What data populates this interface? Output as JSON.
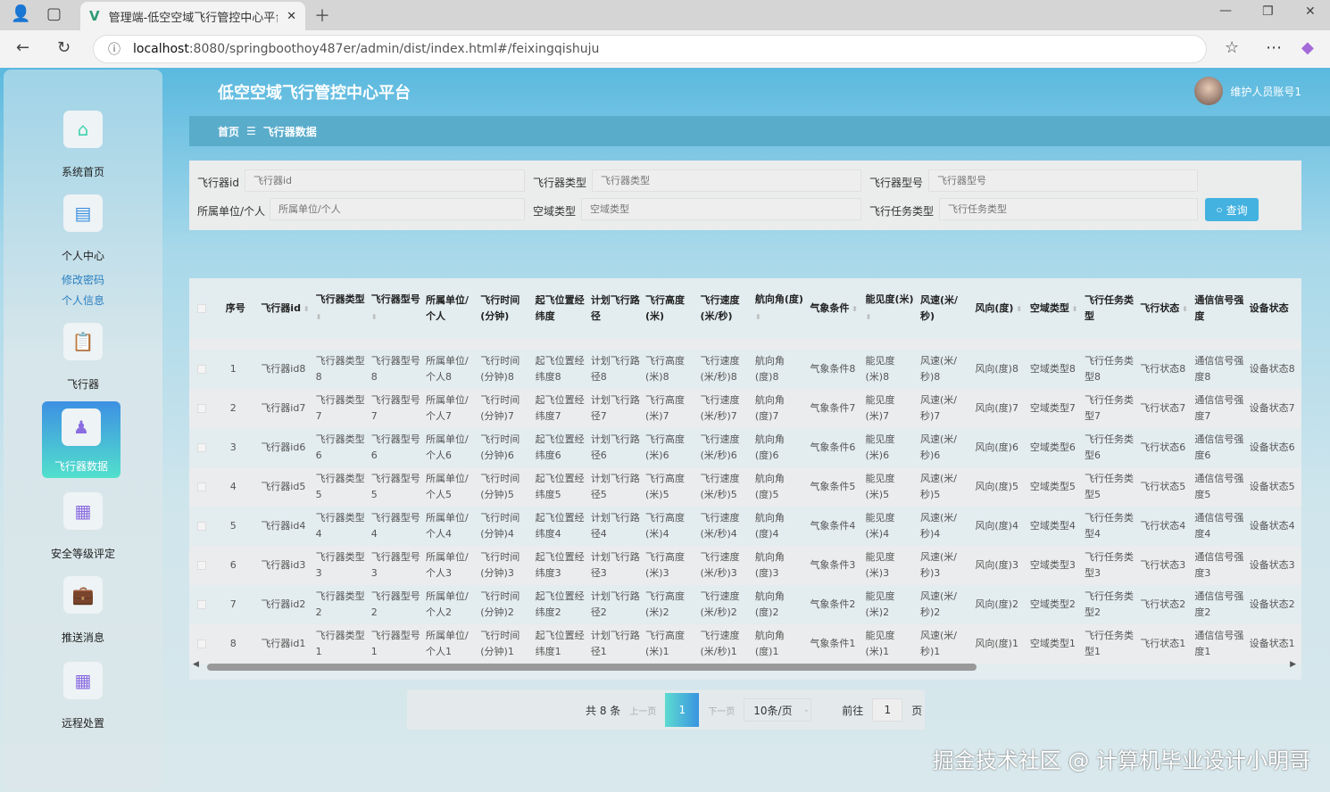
{
  "browser": {
    "tab_title": "管理端-低空空域飞行管控中心平台",
    "url_host": "localhost",
    "url_rest": ":8080/springboothoy487er/admin/dist/index.html#/feixingqishuju"
  },
  "header": {
    "title": "低空空域飞行管控中心平台",
    "user": "维护人员账号1"
  },
  "sidebar": {
    "items": [
      {
        "label": "系统首页",
        "icon": "home-icon"
      },
      {
        "label": "个人中心",
        "icon": "card-icon",
        "subs": [
          "修改密码",
          "个人信息"
        ]
      },
      {
        "label": "飞行器",
        "icon": "clipboard-icon"
      },
      {
        "label": "飞行器数据",
        "icon": "stamp-icon",
        "active": true
      },
      {
        "label": "安全等级评定",
        "icon": "grid-icon"
      },
      {
        "label": "推送消息",
        "icon": "briefcase-icon"
      },
      {
        "label": "远程处置",
        "icon": "grid-icon"
      }
    ]
  },
  "breadcrumb": {
    "home": "首页",
    "sep": "☰",
    "current": "飞行器数据"
  },
  "search": {
    "fields": [
      {
        "label": "飞行器id",
        "placeholder": "飞行器id"
      },
      {
        "label": "飞行器类型",
        "placeholder": "飞行器类型"
      },
      {
        "label": "飞行器型号",
        "placeholder": "飞行器型号"
      },
      {
        "label": "所属单位/个人",
        "placeholder": "所属单位/个人"
      },
      {
        "label": "空域类型",
        "placeholder": "空域类型"
      },
      {
        "label": "飞行任务类型",
        "placeholder": "飞行任务类型"
      }
    ],
    "button": "查询"
  },
  "table": {
    "columns": [
      "序号",
      "飞行器id",
      "飞行器类型",
      "飞行器型号",
      "所属单位/个人",
      "飞行时间(分钟)",
      "起飞位置经纬度",
      "计划飞行路径",
      "飞行高度(米)",
      "飞行速度(米/秒)",
      "航向角(度)",
      "气象条件",
      "能见度(米)",
      "风速(米/秒)",
      "风向(度)",
      "空域类型",
      "飞行任务类型",
      "飞行状态",
      "通信信号强度",
      "设备状态"
    ],
    "sortable": [
      false,
      true,
      true,
      true,
      false,
      false,
      false,
      false,
      false,
      false,
      true,
      true,
      true,
      false,
      true,
      true,
      false,
      true,
      false,
      false
    ],
    "rows": [
      [
        "1",
        "飞行器id8",
        "飞行器类型8",
        "飞行器型号8",
        "所属单位/个人8",
        "飞行时间(分钟)8",
        "起飞位置经纬度8",
        "计划飞行路径8",
        "飞行高度(米)8",
        "飞行速度(米/秒)8",
        "航向角(度)8",
        "气象条件8",
        "能见度(米)8",
        "风速(米/秒)8",
        "风向(度)8",
        "空域类型8",
        "飞行任务类型8",
        "飞行状态8",
        "通信信号强度8",
        "设备状态8"
      ],
      [
        "2",
        "飞行器id7",
        "飞行器类型7",
        "飞行器型号7",
        "所属单位/个人7",
        "飞行时间(分钟)7",
        "起飞位置经纬度7",
        "计划飞行路径7",
        "飞行高度(米)7",
        "飞行速度(米/秒)7",
        "航向角(度)7",
        "气象条件7",
        "能见度(米)7",
        "风速(米/秒)7",
        "风向(度)7",
        "空域类型7",
        "飞行任务类型7",
        "飞行状态7",
        "通信信号强度7",
        "设备状态7"
      ],
      [
        "3",
        "飞行器id6",
        "飞行器类型6",
        "飞行器型号6",
        "所属单位/个人6",
        "飞行时间(分钟)6",
        "起飞位置经纬度6",
        "计划飞行路径6",
        "飞行高度(米)6",
        "飞行速度(米/秒)6",
        "航向角(度)6",
        "气象条件6",
        "能见度(米)6",
        "风速(米/秒)6",
        "风向(度)6",
        "空域类型6",
        "飞行任务类型6",
        "飞行状态6",
        "通信信号强度6",
        "设备状态6"
      ],
      [
        "4",
        "飞行器id5",
        "飞行器类型5",
        "飞行器型号5",
        "所属单位/个人5",
        "飞行时间(分钟)5",
        "起飞位置经纬度5",
        "计划飞行路径5",
        "飞行高度(米)5",
        "飞行速度(米/秒)5",
        "航向角(度)5",
        "气象条件5",
        "能见度(米)5",
        "风速(米/秒)5",
        "风向(度)5",
        "空域类型5",
        "飞行任务类型5",
        "飞行状态5",
        "通信信号强度5",
        "设备状态5"
      ],
      [
        "5",
        "飞行器id4",
        "飞行器类型4",
        "飞行器型号4",
        "所属单位/个人4",
        "飞行时间(分钟)4",
        "起飞位置经纬度4",
        "计划飞行路径4",
        "飞行高度(米)4",
        "飞行速度(米/秒)4",
        "航向角(度)4",
        "气象条件4",
        "能见度(米)4",
        "风速(米/秒)4",
        "风向(度)4",
        "空域类型4",
        "飞行任务类型4",
        "飞行状态4",
        "通信信号强度4",
        "设备状态4"
      ],
      [
        "6",
        "飞行器id3",
        "飞行器类型3",
        "飞行器型号3",
        "所属单位/个人3",
        "飞行时间(分钟)3",
        "起飞位置经纬度3",
        "计划飞行路径3",
        "飞行高度(米)3",
        "飞行速度(米/秒)3",
        "航向角(度)3",
        "气象条件3",
        "能见度(米)3",
        "风速(米/秒)3",
        "风向(度)3",
        "空域类型3",
        "飞行任务类型3",
        "飞行状态3",
        "通信信号强度3",
        "设备状态3"
      ],
      [
        "7",
        "飞行器id2",
        "飞行器类型2",
        "飞行器型号2",
        "所属单位/个人2",
        "飞行时间(分钟)2",
        "起飞位置经纬度2",
        "计划飞行路径2",
        "飞行高度(米)2",
        "飞行速度(米/秒)2",
        "航向角(度)2",
        "气象条件2",
        "能见度(米)2",
        "风速(米/秒)2",
        "风向(度)2",
        "空域类型2",
        "飞行任务类型2",
        "飞行状态2",
        "通信信号强度2",
        "设备状态2"
      ],
      [
        "8",
        "飞行器id1",
        "飞行器类型1",
        "飞行器型号1",
        "所属单位/个人1",
        "飞行时间(分钟)1",
        "起飞位置经纬度1",
        "计划飞行路径1",
        "飞行高度(米)1",
        "飞行速度(米/秒)1",
        "航向角(度)1",
        "气象条件1",
        "能见度(米)1",
        "风速(米/秒)1",
        "风向(度)1",
        "空域类型1",
        "飞行任务类型1",
        "飞行状态1",
        "通信信号强度1",
        "设备状态1"
      ]
    ]
  },
  "pagination": {
    "total": "共 8 条",
    "prev": "上一页",
    "current": "1",
    "next": "下一页",
    "page_size": "10条/页",
    "goto_label": "前往",
    "goto_value": "1",
    "goto_unit": "页"
  },
  "watermark": "掘金技术社区 @ 计算机毕业设计小明哥",
  "colors": {
    "accent": "#43b2e0",
    "breadcrumb": "#5aaccb",
    "active_gradient": [
      "#3d90e3",
      "#52e0cc"
    ]
  }
}
